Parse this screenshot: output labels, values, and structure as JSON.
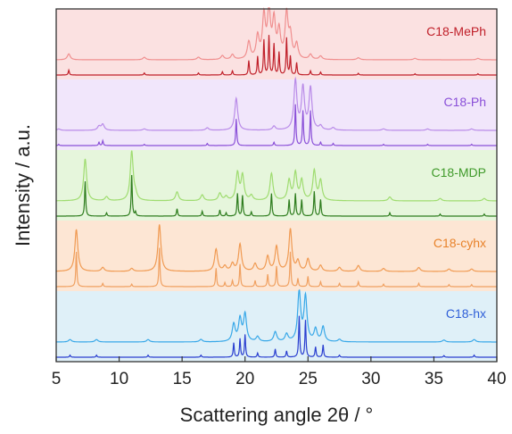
{
  "chart_data": {
    "type": "line",
    "title": "",
    "xlabel": "Scattering angle 2θ / °",
    "ylabel": "Intensity / a.u.",
    "xlim": [
      5,
      40
    ],
    "xticks": [
      5,
      10,
      15,
      20,
      25,
      30,
      35,
      40
    ],
    "grid": false,
    "legend": "none",
    "panels": [
      {
        "label": "C18-MePh",
        "label_color": "#c0202a",
        "band_color": "#fbe1e1",
        "peaks": [
          [
            6.0,
            0.12
          ],
          [
            12.0,
            0.05
          ],
          [
            16.3,
            0.05
          ],
          [
            18.2,
            0.08
          ],
          [
            19.0,
            0.1
          ],
          [
            20.3,
            0.35
          ],
          [
            21.0,
            0.45
          ],
          [
            21.5,
            0.85
          ],
          [
            21.9,
            0.95
          ],
          [
            22.3,
            0.75
          ],
          [
            22.7,
            0.55
          ],
          [
            23.3,
            0.9
          ],
          [
            23.6,
            0.45
          ],
          [
            24.1,
            0.3
          ],
          [
            25.2,
            0.1
          ],
          [
            26.0,
            0.07
          ],
          [
            29.0,
            0.04
          ],
          [
            33.5,
            0.03
          ],
          [
            38.5,
            0.03
          ]
        ],
        "series": [
          {
            "name": "",
            "color": "#f08f8f",
            "role": "measured"
          },
          {
            "name": "",
            "color": "#c0202a",
            "role": "simulated"
          }
        ]
      },
      {
        "label": "C18-Ph",
        "label_color": "#8a4fd8",
        "band_color": "#f1e6fb",
        "peaks": [
          [
            5.2,
            0.03
          ],
          [
            8.4,
            0.08
          ],
          [
            8.7,
            0.12
          ],
          [
            12.0,
            0.03
          ],
          [
            17.0,
            0.05
          ],
          [
            19.3,
            0.65
          ],
          [
            22.3,
            0.08
          ],
          [
            24.0,
            1.0
          ],
          [
            24.6,
            0.85
          ],
          [
            25.2,
            0.85
          ],
          [
            26.0,
            0.08
          ],
          [
            27.0,
            0.05
          ],
          [
            31.0,
            0.03
          ],
          [
            34.5,
            0.03
          ],
          [
            38.0,
            0.03
          ]
        ],
        "series": [
          {
            "name": "",
            "color": "#b98be8",
            "role": "measured"
          },
          {
            "name": "",
            "color": "#8a4fd8",
            "role": "simulated"
          }
        ]
      },
      {
        "label": "C18-MDP",
        "label_color": "#3f9a2a",
        "band_color": "#e6f6dc",
        "peaks": [
          [
            7.3,
            0.85
          ],
          [
            9.0,
            0.08
          ],
          [
            11.0,
            1.0
          ],
          [
            11.3,
            0.1
          ],
          [
            14.6,
            0.18
          ],
          [
            16.6,
            0.12
          ],
          [
            18.0,
            0.15
          ],
          [
            18.5,
            0.08
          ],
          [
            19.4,
            0.55
          ],
          [
            19.8,
            0.5
          ],
          [
            20.5,
            0.1
          ],
          [
            22.1,
            0.55
          ],
          [
            23.5,
            0.4
          ],
          [
            24.0,
            0.55
          ],
          [
            24.5,
            0.4
          ],
          [
            25.5,
            0.6
          ],
          [
            26.0,
            0.4
          ],
          [
            31.5,
            0.08
          ],
          [
            35.5,
            0.05
          ],
          [
            39.0,
            0.05
          ]
        ],
        "series": [
          {
            "name": "",
            "color": "#9fdc70",
            "role": "measured"
          },
          {
            "name": "",
            "color": "#2e7d1e",
            "role": "simulated"
          }
        ]
      },
      {
        "label": "C18-cyhx",
        "label_color": "#e8822a",
        "band_color": "#fde6d4",
        "peaks": [
          [
            6.6,
            0.85
          ],
          [
            8.7,
            0.08
          ],
          [
            11.0,
            0.06
          ],
          [
            13.2,
            0.95
          ],
          [
            17.7,
            0.45
          ],
          [
            18.4,
            0.1
          ],
          [
            19.0,
            0.15
          ],
          [
            19.6,
            0.55
          ],
          [
            20.8,
            0.15
          ],
          [
            21.8,
            0.3
          ],
          [
            22.5,
            0.5
          ],
          [
            23.6,
            0.85
          ],
          [
            24.2,
            0.2
          ],
          [
            25.0,
            0.25
          ],
          [
            26.0,
            0.12
          ],
          [
            27.5,
            0.08
          ],
          [
            29.0,
            0.12
          ],
          [
            31.0,
            0.06
          ],
          [
            33.8,
            0.08
          ],
          [
            36.2,
            0.05
          ],
          [
            38.0,
            0.05
          ]
        ],
        "series": [
          {
            "name": "",
            "color": "#f09a52",
            "role": "measured"
          },
          {
            "name": "",
            "color": "#f0a060",
            "role": "simulated"
          }
        ]
      },
      {
        "label": "C18-hx",
        "label_color": "#2f5fd8",
        "band_color": "#dff0f8",
        "peaks": [
          [
            6.1,
            0.05
          ],
          [
            8.2,
            0.05
          ],
          [
            12.3,
            0.05
          ],
          [
            16.5,
            0.05
          ],
          [
            19.1,
            0.35
          ],
          [
            19.6,
            0.45
          ],
          [
            20.0,
            0.55
          ],
          [
            21.0,
            0.1
          ],
          [
            22.4,
            0.2
          ],
          [
            23.3,
            0.15
          ],
          [
            24.3,
            1.0
          ],
          [
            24.8,
            0.9
          ],
          [
            25.6,
            0.25
          ],
          [
            26.2,
            0.3
          ],
          [
            27.5,
            0.05
          ],
          [
            35.8,
            0.04
          ],
          [
            38.2,
            0.05
          ]
        ],
        "series": [
          {
            "name": "",
            "color": "#38a8e8",
            "role": "measured"
          },
          {
            "name": "",
            "color": "#2a3fd0",
            "role": "simulated"
          }
        ]
      }
    ]
  }
}
